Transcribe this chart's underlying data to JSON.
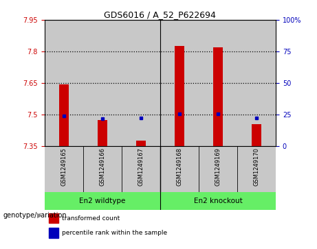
{
  "title": "GDS6016 / A_52_P622694",
  "samples": [
    "GSM1249165",
    "GSM1249166",
    "GSM1249167",
    "GSM1249168",
    "GSM1249169",
    "GSM1249170"
  ],
  "red_values": [
    7.645,
    7.475,
    7.375,
    7.825,
    7.82,
    7.455
  ],
  "blue_values": [
    7.492,
    7.48,
    7.484,
    7.504,
    7.504,
    7.482
  ],
  "ymin": 7.35,
  "ymax": 7.95,
  "yticks_left": [
    7.35,
    7.5,
    7.65,
    7.8,
    7.95
  ],
  "yticks_right_pos": [
    7.35,
    7.5,
    7.65,
    7.8,
    7.95
  ],
  "yticks_right_labels": [
    "0",
    "25",
    "50",
    "75",
    "100%"
  ],
  "hlines": [
    7.5,
    7.65,
    7.8
  ],
  "group_labels": [
    "En2 wildtype",
    "En2 knockout"
  ],
  "group_label_prefix": "genotype/variation",
  "legend_red": "transformed count",
  "legend_blue": "percentile rank within the sample",
  "bar_width": 0.25,
  "red_color": "#CC0000",
  "blue_color": "#0000BB",
  "sample_bg": "#C8C8C8",
  "group_green": "#66EE66",
  "plot_bg": "#FFFFFF"
}
